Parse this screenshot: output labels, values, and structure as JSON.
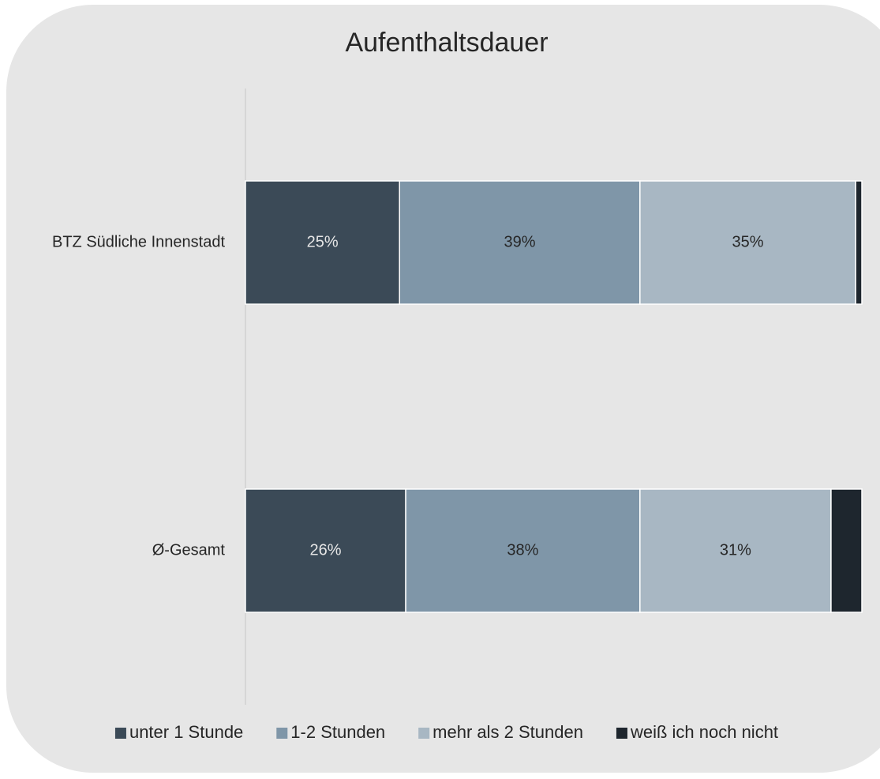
{
  "chart_data": {
    "type": "stacked-barh",
    "title": "Aufenthaltsdauer",
    "categories": [
      "BTZ Südliche Innenstadt",
      "Ø-Gesamt"
    ],
    "xlim": [
      0,
      100
    ],
    "series": [
      {
        "name": "unter 1 Stunde",
        "color": "#3b4a57",
        "values": [
          25,
          26
        ],
        "value_labels": [
          "25%",
          "26%"
        ]
      },
      {
        "name": "1-2 Stunden",
        "color": "#7f96a8",
        "values": [
          39,
          38
        ],
        "value_labels": [
          "39%",
          "38%"
        ]
      },
      {
        "name": "mehr als 2 Stunden",
        "color": "#a8b7c3",
        "values": [
          35,
          31
        ],
        "value_labels": [
          "35%",
          "31%"
        ]
      },
      {
        "name": "weiß ich noch nicht",
        "color": "#1e262e",
        "values": [
          1,
          5
        ]
      }
    ],
    "legend": "bottom"
  }
}
